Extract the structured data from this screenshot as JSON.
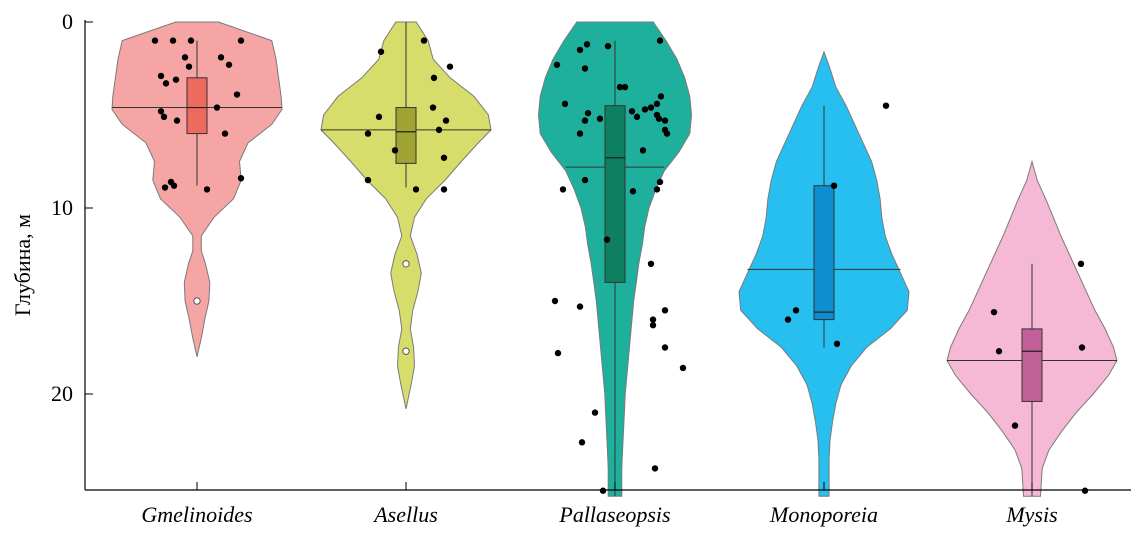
{
  "chart_data": {
    "type": "violin",
    "ylabel": "Глубина, м",
    "y_axis": {
      "min": 0,
      "max": 25.5,
      "inverted": true,
      "ticks": [
        0,
        10,
        20
      ]
    },
    "categories": [
      "Gmelinoides",
      "Asellus",
      "Pallaseopsis",
      "Monoporeia",
      "Mysis"
    ],
    "series": [
      {
        "category": "Gmelinoides",
        "color": "#f6a5a5",
        "box_color": "#ef6a5e",
        "violin_profile": [
          [
            0.0,
            0.25
          ],
          [
            1.0,
            0.88
          ],
          [
            2.0,
            0.93
          ],
          [
            3.0,
            0.96
          ],
          [
            4.0,
            0.99
          ],
          [
            4.7,
            1.0
          ],
          [
            5.5,
            0.88
          ],
          [
            6.5,
            0.6
          ],
          [
            7.5,
            0.5
          ],
          [
            8.5,
            0.52
          ],
          [
            9.5,
            0.43
          ],
          [
            10.5,
            0.2
          ],
          [
            11.5,
            0.05
          ],
          [
            12.3,
            0.05
          ],
          [
            13.0,
            0.1
          ],
          [
            14.0,
            0.15
          ],
          [
            15.0,
            0.14
          ],
          [
            16.0,
            0.09
          ],
          [
            17.0,
            0.05
          ],
          [
            18.0,
            0.0
          ]
        ],
        "violin_top": 0.0,
        "mean": 4.6,
        "box": {
          "q1": 3.0,
          "median": 4.6,
          "q3": 6.0,
          "whisker_low": 1.0,
          "whisker_high": 8.8
        },
        "outliers": [
          15.0
        ],
        "points": [
          [
            -0.42,
            1.0
          ],
          [
            -0.24,
            1.0
          ],
          [
            -0.06,
            1.0
          ],
          [
            0.44,
            1.0
          ],
          [
            -0.12,
            1.9
          ],
          [
            0.24,
            1.9
          ],
          [
            -0.08,
            2.4
          ],
          [
            0.32,
            2.3
          ],
          [
            -0.36,
            2.9
          ],
          [
            -0.21,
            3.1
          ],
          [
            -0.31,
            3.3
          ],
          [
            0.4,
            3.9
          ],
          [
            -0.36,
            4.8
          ],
          [
            0.2,
            4.6
          ],
          [
            -0.33,
            5.1
          ],
          [
            -0.2,
            5.3
          ],
          [
            0.28,
            6.0
          ],
          [
            -0.26,
            8.6
          ],
          [
            -0.23,
            8.8
          ],
          [
            -0.32,
            8.9
          ],
          [
            0.1,
            9.0
          ],
          [
            0.44,
            8.4
          ]
        ]
      },
      {
        "category": "Asellus",
        "color": "#d7dd6a",
        "box_color": "#9fa331",
        "violin_profile": [
          [
            0.0,
            0.12
          ],
          [
            1.0,
            0.26
          ],
          [
            2.0,
            0.32
          ],
          [
            3.0,
            0.52
          ],
          [
            4.0,
            0.8
          ],
          [
            5.0,
            0.97
          ],
          [
            5.8,
            1.0
          ],
          [
            6.5,
            0.85
          ],
          [
            7.5,
            0.65
          ],
          [
            8.5,
            0.46
          ],
          [
            9.5,
            0.24
          ],
          [
            10.5,
            0.1
          ],
          [
            11.5,
            0.05
          ],
          [
            12.5,
            0.13
          ],
          [
            13.5,
            0.18
          ],
          [
            14.5,
            0.14
          ],
          [
            15.5,
            0.08
          ],
          [
            16.5,
            0.05
          ],
          [
            17.5,
            0.09
          ],
          [
            18.5,
            0.1
          ],
          [
            19.5,
            0.06
          ],
          [
            20.8,
            0.0
          ]
        ],
        "violin_top": 0.0,
        "mean": 5.8,
        "box": {
          "q1": 4.6,
          "median": 5.9,
          "q3": 7.6,
          "whisker_low": 0.0,
          "whisker_high": 8.9
        },
        "outliers": [
          13.0,
          17.7
        ],
        "points": [
          [
            -0.25,
            1.6
          ],
          [
            0.18,
            1.0
          ],
          [
            0.28,
            3.0
          ],
          [
            0.44,
            2.4
          ],
          [
            0.27,
            4.6
          ],
          [
            0.4,
            5.3
          ],
          [
            -0.27,
            5.1
          ],
          [
            -0.38,
            6.0
          ],
          [
            -0.38,
            8.5
          ],
          [
            0.33,
            5.8
          ],
          [
            0.38,
            7.3
          ],
          [
            0.38,
            9.0
          ],
          [
            -0.11,
            6.9
          ],
          [
            0.1,
            9.0
          ]
        ]
      },
      {
        "category": "Pallaseopsis",
        "color": "#1fb09d",
        "box_color": "#0e8060",
        "violin_profile": [
          [
            0.0,
            0.45
          ],
          [
            1.0,
            0.6
          ],
          [
            2.0,
            0.73
          ],
          [
            3.0,
            0.82
          ],
          [
            4.0,
            0.88
          ],
          [
            5.0,
            0.9
          ],
          [
            6.0,
            0.88
          ],
          [
            7.0,
            0.75
          ],
          [
            8.0,
            0.58
          ],
          [
            9.0,
            0.48
          ],
          [
            10.0,
            0.4
          ],
          [
            11.0,
            0.35
          ],
          [
            12.0,
            0.32
          ],
          [
            13.0,
            0.28
          ],
          [
            14.0,
            0.25
          ],
          [
            15.0,
            0.22
          ],
          [
            16.0,
            0.2
          ],
          [
            17.0,
            0.18
          ],
          [
            18.0,
            0.16
          ],
          [
            19.0,
            0.14
          ],
          [
            20.0,
            0.12
          ],
          [
            21.0,
            0.11
          ],
          [
            22.0,
            0.1
          ],
          [
            23.0,
            0.09
          ],
          [
            24.0,
            0.08
          ],
          [
            25.5,
            0.08
          ]
        ],
        "violin_top": 0.0,
        "mean": 7.8,
        "box": {
          "q1": 4.5,
          "median": 7.3,
          "q3": 14.0,
          "whisker_low": 1.0,
          "whisker_high": 25.5
        },
        "outliers": [],
        "points": [
          [
            -0.58,
            2.3
          ],
          [
            -0.5,
            4.4
          ],
          [
            -0.6,
            15.0
          ],
          [
            -0.57,
            17.8
          ],
          [
            -0.35,
            1.5
          ],
          [
            -0.28,
            1.2
          ],
          [
            -0.3,
            2.5
          ],
          [
            -0.52,
            9.0
          ],
          [
            -0.35,
            6.0
          ],
          [
            -0.3,
            5.3
          ],
          [
            -0.3,
            8.5
          ],
          [
            -0.35,
            15.3
          ],
          [
            -0.33,
            22.6
          ],
          [
            -0.07,
            1.3
          ],
          [
            -0.08,
            11.7
          ],
          [
            -0.2,
            21.0
          ],
          [
            -0.27,
            4.9
          ],
          [
            -0.15,
            5.2
          ],
          [
            -0.12,
            25.2
          ],
          [
            0.05,
            3.5
          ],
          [
            0.1,
            3.5
          ],
          [
            0.17,
            4.8
          ],
          [
            0.22,
            5.1
          ],
          [
            0.3,
            4.7
          ],
          [
            0.36,
            4.6
          ],
          [
            0.42,
            5.0
          ],
          [
            0.44,
            5.2
          ],
          [
            0.5,
            5.3
          ],
          [
            0.5,
            5.8
          ],
          [
            0.52,
            6.0
          ],
          [
            0.46,
            4.0
          ],
          [
            0.42,
            4.4
          ],
          [
            0.45,
            8.6
          ],
          [
            0.42,
            9.0
          ],
          [
            0.28,
            6.9
          ],
          [
            0.18,
            9.1
          ],
          [
            0.36,
            13.0
          ],
          [
            0.38,
            16.0
          ],
          [
            0.38,
            16.3
          ],
          [
            0.5,
            15.5
          ],
          [
            0.5,
            17.5
          ],
          [
            0.68,
            18.6
          ],
          [
            0.4,
            24.0
          ],
          [
            0.45,
            1.0
          ]
        ]
      },
      {
        "category": "Monoporeia",
        "color": "#27bef0",
        "box_color": "#0d8ed0",
        "violin_profile": [
          [
            1.6,
            0.0
          ],
          [
            2.5,
            0.07
          ],
          [
            3.5,
            0.14
          ],
          [
            4.5,
            0.26
          ],
          [
            5.5,
            0.36
          ],
          [
            6.5,
            0.46
          ],
          [
            7.5,
            0.56
          ],
          [
            8.5,
            0.62
          ],
          [
            9.5,
            0.66
          ],
          [
            10.5,
            0.68
          ],
          [
            11.5,
            0.72
          ],
          [
            12.5,
            0.8
          ],
          [
            13.5,
            0.9
          ],
          [
            14.5,
            1.0
          ],
          [
            15.5,
            0.98
          ],
          [
            16.5,
            0.78
          ],
          [
            17.5,
            0.5
          ],
          [
            18.5,
            0.32
          ],
          [
            19.5,
            0.2
          ],
          [
            20.5,
            0.14
          ],
          [
            21.5,
            0.1
          ],
          [
            22.5,
            0.07
          ],
          [
            23.5,
            0.06
          ],
          [
            25.5,
            0.06
          ]
        ],
        "violin_top": 1.6,
        "mean": 13.3,
        "box": {
          "q1": 8.8,
          "median": 15.6,
          "q3": 16.0,
          "whisker_low": 4.5,
          "whisker_high": 17.5
        },
        "outliers": [],
        "points": [
          [
            0.62,
            4.5
          ],
          [
            0.1,
            8.8
          ],
          [
            -0.28,
            15.5
          ],
          [
            -0.36,
            16.0
          ],
          [
            0.13,
            17.3
          ]
        ]
      },
      {
        "category": "Mysis",
        "color": "#f5b9d6",
        "box_color": "#c2609a",
        "violin_profile": [
          [
            7.5,
            0.0
          ],
          [
            8.5,
            0.06
          ],
          [
            9.5,
            0.16
          ],
          [
            10.5,
            0.25
          ],
          [
            11.5,
            0.34
          ],
          [
            12.5,
            0.44
          ],
          [
            13.5,
            0.54
          ],
          [
            14.5,
            0.64
          ],
          [
            15.5,
            0.74
          ],
          [
            16.5,
            0.86
          ],
          [
            17.5,
            0.96
          ],
          [
            18.2,
            1.0
          ],
          [
            19.0,
            0.9
          ],
          [
            20.0,
            0.72
          ],
          [
            21.0,
            0.52
          ],
          [
            22.0,
            0.35
          ],
          [
            23.0,
            0.2
          ],
          [
            24.0,
            0.12
          ],
          [
            25.5,
            0.1
          ]
        ],
        "violin_top": 8.5,
        "mean": 18.2,
        "box": {
          "q1": 16.5,
          "median": 17.7,
          "q3": 20.4,
          "whisker_low": 13.0,
          "whisker_high": 25.5
        },
        "outliers": [],
        "points": [
          [
            -0.38,
            15.6
          ],
          [
            -0.33,
            17.7
          ],
          [
            -0.17,
            21.7
          ],
          [
            0.49,
            13.0
          ],
          [
            0.5,
            17.5
          ],
          [
            0.53,
            25.2
          ]
        ]
      }
    ]
  }
}
